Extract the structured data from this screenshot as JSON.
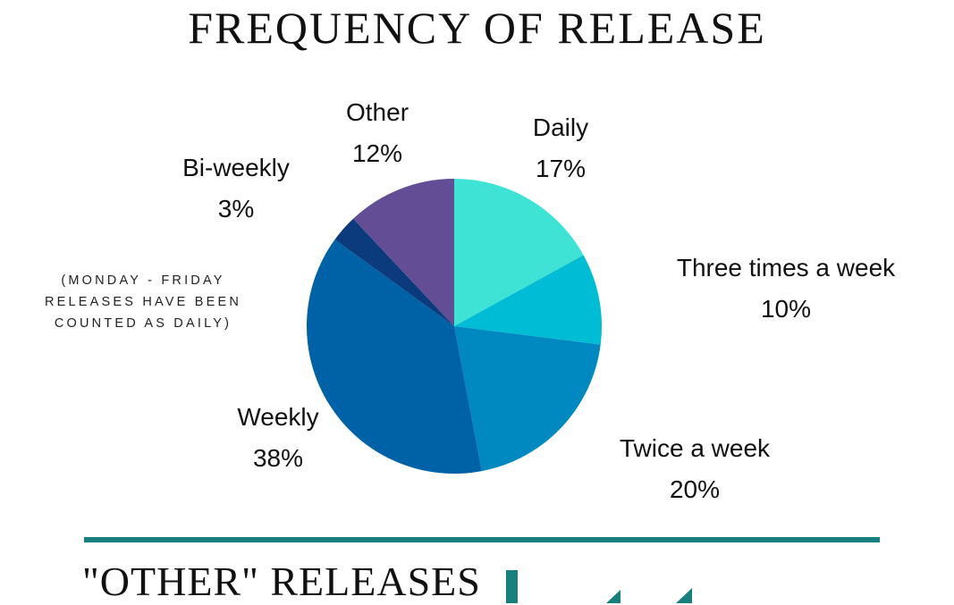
{
  "title": "FREQUENCY OF  RELEASE",
  "note": "(MONDAY - FRIDAY RELEASES HAVE BEEN COUNTED AS DAILY)",
  "section_title": "\"OTHER\" RELEASES",
  "colors": {
    "divider": "#17807f",
    "accent": "#17807f"
  },
  "chart_data": {
    "type": "pie",
    "title": "FREQUENCY OF  RELEASE",
    "slices": [
      {
        "label": "Daily",
        "value": 17,
        "pct_label": "17%",
        "color": "#3ee3d6"
      },
      {
        "label": "Three times a week",
        "value": 10,
        "pct_label": "10%",
        "color": "#00bcd4"
      },
      {
        "label": "Twice a week",
        "value": 20,
        "pct_label": "20%",
        "color": "#0089c0"
      },
      {
        "label": "Weekly",
        "value": 38,
        "pct_label": "38%",
        "color": "#0062a6"
      },
      {
        "label": "Bi-weekly",
        "value": 3,
        "pct_label": "3%",
        "color": "#0b3b7c"
      },
      {
        "label": "Other",
        "value": 12,
        "pct_label": "12%",
        "color": "#634e96"
      }
    ],
    "start": "12 o'clock",
    "direction": "clockwise",
    "legend": "none"
  }
}
